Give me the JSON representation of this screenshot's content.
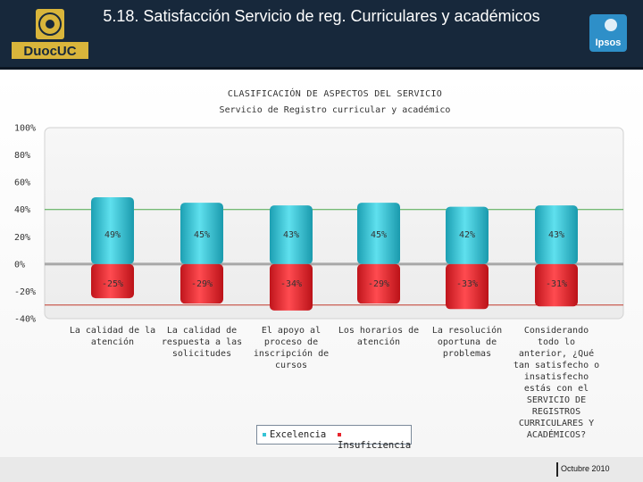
{
  "header": {
    "title": "5.18. Satisfacción Servicio de reg. Curriculares y académicos",
    "logo_left": "DuocUC",
    "logo_right": "Ipsos"
  },
  "chart_data": {
    "type": "bar",
    "title": "CLASIFICACIÓN DE ASPECTOS DEL SERVICIO",
    "subtitle": "Servicio de Registro curricular y académico",
    "ylim": [
      -40,
      100
    ],
    "yticks": [
      "100%",
      "80%",
      "60%",
      "40%",
      "20%",
      "0%",
      "-20%",
      "-40%"
    ],
    "reference_lines": [
      40,
      -30
    ],
    "categories": [
      "La calidad de la atención",
      "La calidad de respuesta a las solicitudes",
      "El apoyo al proceso de inscripción de cursos",
      "Los horarios de atención",
      "La resolución oportuna de problemas",
      "Considerando todo lo anterior, ¿Qué tan satisfecho o insatisfecho estás con el SERVICIO DE REGISTROS CURRICULARES Y ACADÉMICOS?"
    ],
    "series": [
      {
        "name": "Excelencia",
        "color": "#36c4d6",
        "values": [
          49,
          45,
          43,
          45,
          42,
          43
        ],
        "labels": [
          "49%",
          "45%",
          "43%",
          "45%",
          "42%",
          "43%"
        ]
      },
      {
        "name": "Insuficiencia",
        "color": "#e8242c",
        "values": [
          -25,
          -29,
          -34,
          -29,
          -33,
          -31
        ],
        "labels": [
          "-25%",
          "-29%",
          "-34%",
          "-29%",
          "-33%",
          "-31%"
        ]
      }
    ],
    "legend": "bottom"
  },
  "footer": {
    "date": "Octubre 2010"
  }
}
